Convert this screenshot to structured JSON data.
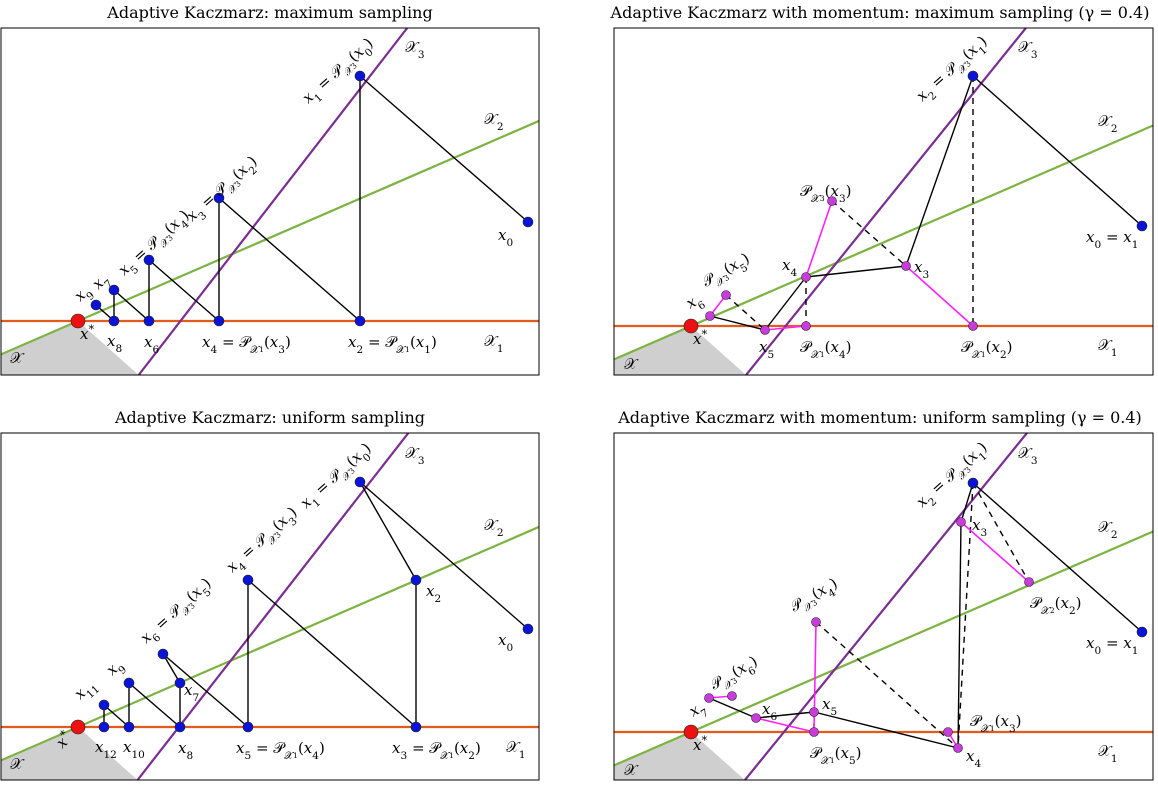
{
  "colors": {
    "line_X1": "#e25a1c",
    "line_X2": "#7cb342",
    "line_X3": "#7b2d91",
    "point": "#0a14d8",
    "solution": "#ee1111",
    "momentum_point": "#c83cdc",
    "momentum_path": "#ff22ff",
    "feasible_region": "#cfcfcf"
  },
  "panels": [
    {
      "title": "Adaptive Kaczmarz: maximum sampling",
      "labels": [
        "X3",
        "X2",
        "X1",
        "X",
        "x0",
        "x1 = P_X3(x0)",
        "x2 = P_X1(x1)",
        "x3 = P_X3(x2)",
        "x4 = P_X1(x3)",
        "x5 = P_X3(x4)",
        "x6",
        "x7",
        "x8",
        "x9",
        "x*"
      ]
    },
    {
      "title": "Adaptive Kaczmarz with momentum: maximum sampling (γ = 0.4)",
      "labels": [
        "X3",
        "X2",
        "X1",
        "X",
        "x0 = x1",
        "x2 = P_X3(x1)",
        "P_X3(x3)",
        "x3",
        "x4",
        "P_X1(x2)",
        "P_X1(x4)",
        "x5",
        "P_X3(x5)",
        "x6",
        "x*"
      ]
    },
    {
      "title": "Adaptive Kaczmarz: uniform sampling",
      "labels": [
        "X3",
        "X2",
        "X1",
        "X",
        "x0",
        "x1 = P_X3(x0)",
        "x2",
        "x3 = P_X1(x2)",
        "x4 = P_X3(x3)",
        "x5 = P_X1(x4)",
        "x6 = P_X3(x5)",
        "x7",
        "x8",
        "x9",
        "x10",
        "x11",
        "x12",
        "x*"
      ]
    },
    {
      "title": "Adaptive Kaczmarz with momentum: uniform sampling (γ = 0.4)",
      "labels": [
        "X3",
        "X2",
        "X1",
        "X",
        "x0 = x1",
        "x2 = P_X3(x1)",
        "x3",
        "P_X2(x2)",
        "P_X3(x4)",
        "P_X1(x3)",
        "x4",
        "x5",
        "x6",
        "P_X1(x5)",
        "P_X3(x6)",
        "x7",
        "x*"
      ]
    }
  ]
}
